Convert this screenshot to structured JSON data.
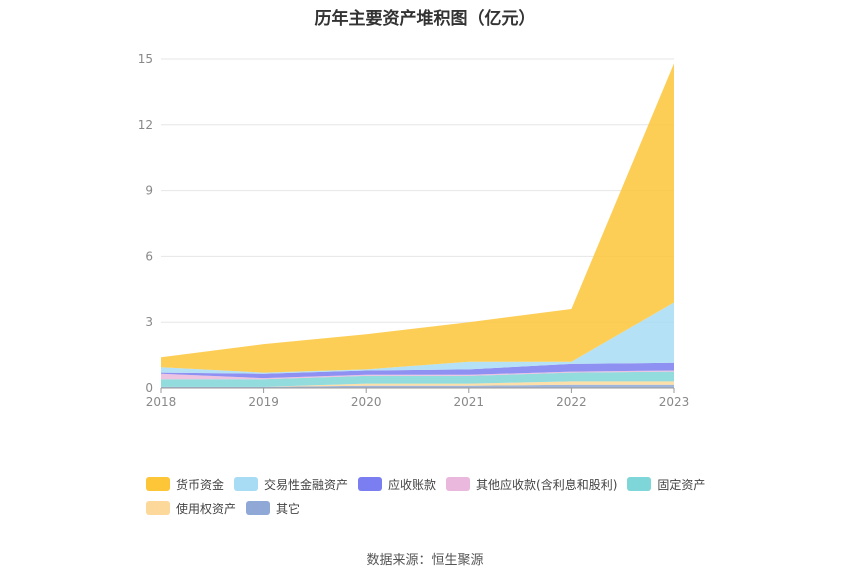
{
  "chart_data": {
    "type": "area",
    "stacked": true,
    "title": "历年主要资产堆积图（亿元）",
    "categories": [
      "2018",
      "2019",
      "2020",
      "2021",
      "2022",
      "2023"
    ],
    "ylim": [
      0,
      15
    ],
    "yticks": [
      "0",
      "3",
      "6",
      "9",
      "12",
      "15"
    ],
    "grid": true,
    "legend_position": "bottom",
    "series": [
      {
        "name": "其它",
        "color": "#8fa8d6",
        "values": [
          0.05,
          0.05,
          0.1,
          0.1,
          0.15,
          0.15
        ]
      },
      {
        "name": "使用权资产",
        "color": "#fcd99a",
        "values": [
          0.0,
          0.0,
          0.1,
          0.1,
          0.15,
          0.15
        ]
      },
      {
        "name": "固定资产",
        "color": "#7fd6d8",
        "values": [
          0.35,
          0.35,
          0.35,
          0.35,
          0.4,
          0.45
        ]
      },
      {
        "name": "其他应收款(含利息和股利)",
        "color": "#e9b8dc",
        "values": [
          0.25,
          0.05,
          0.05,
          0.05,
          0.05,
          0.05
        ]
      },
      {
        "name": "应收账款",
        "color": "#7b7ef0",
        "values": [
          0.05,
          0.2,
          0.2,
          0.25,
          0.35,
          0.35
        ]
      },
      {
        "name": "交易性金融资产",
        "color": "#a8dcf5",
        "values": [
          0.25,
          0.05,
          0.05,
          0.35,
          0.1,
          2.75
        ]
      },
      {
        "name": "货币资金",
        "color": "#fdc638",
        "values": [
          0.45,
          1.3,
          1.6,
          1.8,
          2.4,
          10.9
        ]
      }
    ],
    "legend_order": [
      "货币资金",
      "交易性金融资产",
      "应收账款",
      "其他应收款(含利息和股利)",
      "固定资产",
      "使用权资产",
      "其它"
    ]
  },
  "source_text": "数据来源：恒生聚源"
}
